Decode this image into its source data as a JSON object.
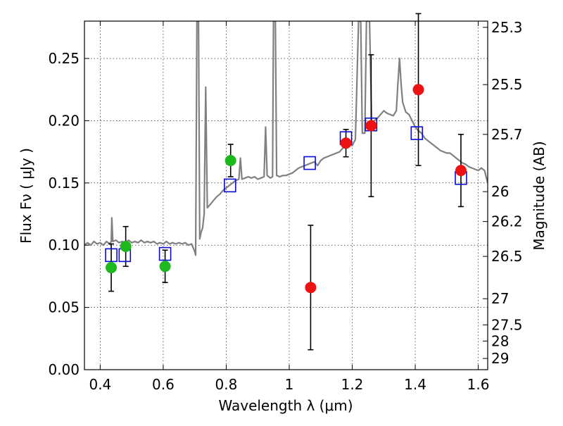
{
  "chart_data": {
    "type": "scatter",
    "xlabel": "Wavelength  λ (μm)",
    "ylabel": "Flux  Fν  ( μJy )",
    "y2label": "Magnitude (AB)",
    "xlim": [
      0.35,
      1.63
    ],
    "ylim": [
      0.0,
      0.28
    ],
    "x_ticks": [
      0.4,
      0.6,
      0.8,
      1.0,
      1.2,
      1.4,
      1.6
    ],
    "x_tick_labels": [
      "0.4",
      "0.6",
      "0.8",
      "1",
      "1.2",
      "1.4",
      "1.6"
    ],
    "y_ticks": [
      0.0,
      0.05,
      0.1,
      0.15,
      0.2,
      0.25
    ],
    "y_tick_labels": [
      "0.00",
      "0.05",
      "0.10",
      "0.15",
      "0.20",
      "0.25"
    ],
    "y2_ticks": [
      {
        "label": "25.3",
        "flux": 0.275
      },
      {
        "label": "25.5",
        "flux": 0.229
      },
      {
        "label": "25.7",
        "flux": 0.189
      },
      {
        "label": "26",
        "flux": 0.143
      },
      {
        "label": "26.2",
        "flux": 0.119
      },
      {
        "label": "26.5",
        "flux": 0.091
      },
      {
        "label": "27",
        "flux": 0.057
      },
      {
        "label": "27.5",
        "flux": 0.036
      },
      {
        "label": "28",
        "flux": 0.023
      },
      {
        "label": "29",
        "flux": 0.009
      }
    ],
    "grid": true,
    "colors": {
      "green": "#1db81d",
      "red": "#ee1111",
      "model_box": "#0b0bd6",
      "template": "#808080"
    },
    "series": [
      {
        "marker": "circle",
        "color": "#1db81d",
        "points": [
          {
            "x": 0.435,
            "y": 0.082,
            "err": 0.019
          },
          {
            "x": 0.481,
            "y": 0.099,
            "err": 0.016
          },
          {
            "x": 0.606,
            "y": 0.083,
            "err": 0.013
          },
          {
            "x": 0.814,
            "y": 0.168,
            "err": 0.013
          }
        ]
      },
      {
        "marker": "circle",
        "color": "#ee1111",
        "points": [
          {
            "x": 1.068,
            "y": 0.066,
            "err": 0.05
          },
          {
            "x": 1.18,
            "y": 0.182,
            "err": 0.011
          },
          {
            "x": 1.26,
            "y": 0.196,
            "err": 0.057
          },
          {
            "x": 1.41,
            "y": 0.225,
            "err": 0.061
          },
          {
            "x": 1.545,
            "y": 0.16,
            "err": 0.029
          }
        ]
      },
      {
        "marker": "square",
        "color": "#0b0bd6",
        "points": [
          {
            "x": 0.435,
            "y": 0.092
          },
          {
            "x": 0.478,
            "y": 0.092
          },
          {
            "x": 0.606,
            "y": 0.093
          },
          {
            "x": 0.812,
            "y": 0.148
          },
          {
            "x": 1.065,
            "y": 0.166
          },
          {
            "x": 1.18,
            "y": 0.186
          },
          {
            "x": 1.26,
            "y": 0.197
          },
          {
            "x": 1.405,
            "y": 0.19
          },
          {
            "x": 1.545,
            "y": 0.154
          }
        ]
      },
      {
        "marker": "line",
        "color": "#808080",
        "points": [
          [
            0.35,
            0.1
          ],
          [
            0.36,
            0.102
          ],
          [
            0.37,
            0.1
          ],
          [
            0.38,
            0.103
          ],
          [
            0.39,
            0.101
          ],
          [
            0.4,
            0.102
          ],
          [
            0.41,
            0.1
          ],
          [
            0.42,
            0.103
          ],
          [
            0.43,
            0.101
          ],
          [
            0.435,
            0.103
          ],
          [
            0.437,
            0.122
          ],
          [
            0.44,
            0.103
          ],
          [
            0.45,
            0.104
          ],
          [
            0.46,
            0.102
          ],
          [
            0.47,
            0.103
          ],
          [
            0.48,
            0.102
          ],
          [
            0.49,
            0.104
          ],
          [
            0.5,
            0.102
          ],
          [
            0.51,
            0.103
          ],
          [
            0.52,
            0.102
          ],
          [
            0.53,
            0.104
          ],
          [
            0.54,
            0.102
          ],
          [
            0.55,
            0.103
          ],
          [
            0.56,
            0.102
          ],
          [
            0.57,
            0.103
          ],
          [
            0.58,
            0.101
          ],
          [
            0.59,
            0.102
          ],
          [
            0.6,
            0.101
          ],
          [
            0.61,
            0.103
          ],
          [
            0.62,
            0.101
          ],
          [
            0.63,
            0.102
          ],
          [
            0.64,
            0.101
          ],
          [
            0.65,
            0.102
          ],
          [
            0.66,
            0.101
          ],
          [
            0.67,
            0.102
          ],
          [
            0.68,
            0.1
          ],
          [
            0.69,
            0.101
          ],
          [
            0.7,
            0.095
          ],
          [
            0.703,
            0.092
          ],
          [
            0.707,
            0.28
          ],
          [
            0.712,
            0.28
          ],
          [
            0.716,
            0.105
          ],
          [
            0.72,
            0.11
          ],
          [
            0.725,
            0.114
          ],
          [
            0.73,
            0.125
          ],
          [
            0.735,
            0.227
          ],
          [
            0.74,
            0.13
          ],
          [
            0.75,
            0.133
          ],
          [
            0.76,
            0.136
          ],
          [
            0.77,
            0.139
          ],
          [
            0.78,
            0.141
          ],
          [
            0.79,
            0.144
          ],
          [
            0.8,
            0.146
          ],
          [
            0.81,
            0.148
          ],
          [
            0.82,
            0.15
          ],
          [
            0.83,
            0.152
          ],
          [
            0.84,
            0.153
          ],
          [
            0.845,
            0.17
          ],
          [
            0.85,
            0.153
          ],
          [
            0.86,
            0.154
          ],
          [
            0.87,
            0.155
          ],
          [
            0.88,
            0.154
          ],
          [
            0.89,
            0.155
          ],
          [
            0.9,
            0.153
          ],
          [
            0.91,
            0.154
          ],
          [
            0.92,
            0.155
          ],
          [
            0.925,
            0.195
          ],
          [
            0.93,
            0.156
          ],
          [
            0.94,
            0.154
          ],
          [
            0.947,
            0.155
          ],
          [
            0.95,
            0.28
          ],
          [
            0.956,
            0.28
          ],
          [
            0.96,
            0.156
          ],
          [
            0.97,
            0.155
          ],
          [
            0.98,
            0.156
          ],
          [
            0.99,
            0.156
          ],
          [
            1.0,
            0.157
          ],
          [
            1.01,
            0.158
          ],
          [
            1.02,
            0.16
          ],
          [
            1.03,
            0.162
          ],
          [
            1.04,
            0.163
          ],
          [
            1.05,
            0.164
          ],
          [
            1.06,
            0.165
          ],
          [
            1.07,
            0.166
          ],
          [
            1.08,
            0.167
          ],
          [
            1.09,
            0.164
          ],
          [
            1.1,
            0.168
          ],
          [
            1.11,
            0.17
          ],
          [
            1.12,
            0.171
          ],
          [
            1.13,
            0.172
          ],
          [
            1.14,
            0.173
          ],
          [
            1.15,
            0.174
          ],
          [
            1.16,
            0.175
          ],
          [
            1.17,
            0.178
          ],
          [
            1.18,
            0.179
          ],
          [
            1.19,
            0.182
          ],
          [
            1.2,
            0.18
          ],
          [
            1.21,
            0.185
          ],
          [
            1.22,
            0.28
          ],
          [
            1.227,
            0.28
          ],
          [
            1.232,
            0.19
          ],
          [
            1.24,
            0.19
          ],
          [
            1.245,
            0.28
          ],
          [
            1.255,
            0.28
          ],
          [
            1.262,
            0.195
          ],
          [
            1.27,
            0.2
          ],
          [
            1.28,
            0.202
          ],
          [
            1.29,
            0.205
          ],
          [
            1.3,
            0.208
          ],
          [
            1.31,
            0.206
          ],
          [
            1.32,
            0.205
          ],
          [
            1.33,
            0.204
          ],
          [
            1.34,
            0.208
          ],
          [
            1.345,
            0.23
          ],
          [
            1.35,
            0.25
          ],
          [
            1.355,
            0.23
          ],
          [
            1.36,
            0.215
          ],
          [
            1.37,
            0.207
          ],
          [
            1.38,
            0.205
          ],
          [
            1.39,
            0.2
          ],
          [
            1.4,
            0.195
          ],
          [
            1.41,
            0.192
          ],
          [
            1.42,
            0.19
          ],
          [
            1.43,
            0.186
          ],
          [
            1.44,
            0.184
          ],
          [
            1.45,
            0.182
          ],
          [
            1.46,
            0.18
          ],
          [
            1.47,
            0.178
          ],
          [
            1.48,
            0.176
          ],
          [
            1.49,
            0.175
          ],
          [
            1.5,
            0.174
          ],
          [
            1.51,
            0.174
          ],
          [
            1.52,
            0.172
          ],
          [
            1.53,
            0.17
          ],
          [
            1.54,
            0.168
          ],
          [
            1.55,
            0.166
          ],
          [
            1.56,
            0.165
          ],
          [
            1.57,
            0.163
          ],
          [
            1.58,
            0.162
          ],
          [
            1.59,
            0.161
          ],
          [
            1.6,
            0.16
          ],
          [
            1.61,
            0.162
          ],
          [
            1.62,
            0.16
          ],
          [
            1.63,
            0.15
          ]
        ]
      }
    ]
  }
}
